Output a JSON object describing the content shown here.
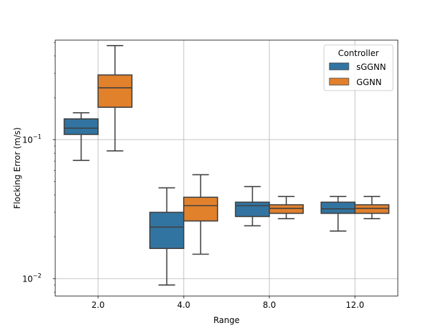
{
  "chart_data": {
    "type": "box",
    "title": "",
    "xlabel": "Range",
    "ylabel": "Flocking Error (m/s)",
    "yscale": "log",
    "ylim": [
      0.0075,
      0.52
    ],
    "grid": true,
    "categories": [
      "2.0",
      "4.0",
      "8.0",
      "12.0"
    ],
    "y_ticks": [
      {
        "value": 0.01,
        "base": "10",
        "exp": "−2"
      },
      {
        "value": 0.1,
        "base": "10",
        "exp": "−1"
      }
    ],
    "legend": {
      "title": "Controller",
      "placement": "top-right"
    },
    "series": [
      {
        "name": "sGGNN",
        "color": "#3274a1",
        "boxes": [
          {
            "whisker_low": 0.071,
            "q1": 0.109,
            "median": 0.121,
            "q3": 0.141,
            "whisker_high": 0.156
          },
          {
            "whisker_low": 0.009,
            "q1": 0.0165,
            "median": 0.0235,
            "q3": 0.03,
            "whisker_high": 0.045
          },
          {
            "whisker_low": 0.024,
            "q1": 0.028,
            "median": 0.0335,
            "q3": 0.0355,
            "whisker_high": 0.046
          },
          {
            "whisker_low": 0.022,
            "q1": 0.0295,
            "median": 0.0318,
            "q3": 0.0355,
            "whisker_high": 0.039
          }
        ]
      },
      {
        "name": "GGNN",
        "color": "#e1812c",
        "boxes": [
          {
            "whisker_low": 0.083,
            "q1": 0.171,
            "median": 0.236,
            "q3": 0.292,
            "whisker_high": 0.475
          },
          {
            "whisker_low": 0.015,
            "q1": 0.026,
            "median": 0.0335,
            "q3": 0.0385,
            "whisker_high": 0.056
          },
          {
            "whisker_low": 0.027,
            "q1": 0.0295,
            "median": 0.032,
            "q3": 0.034,
            "whisker_high": 0.039
          },
          {
            "whisker_low": 0.027,
            "q1": 0.0295,
            "median": 0.032,
            "q3": 0.034,
            "whisker_high": 0.039
          }
        ]
      }
    ]
  }
}
